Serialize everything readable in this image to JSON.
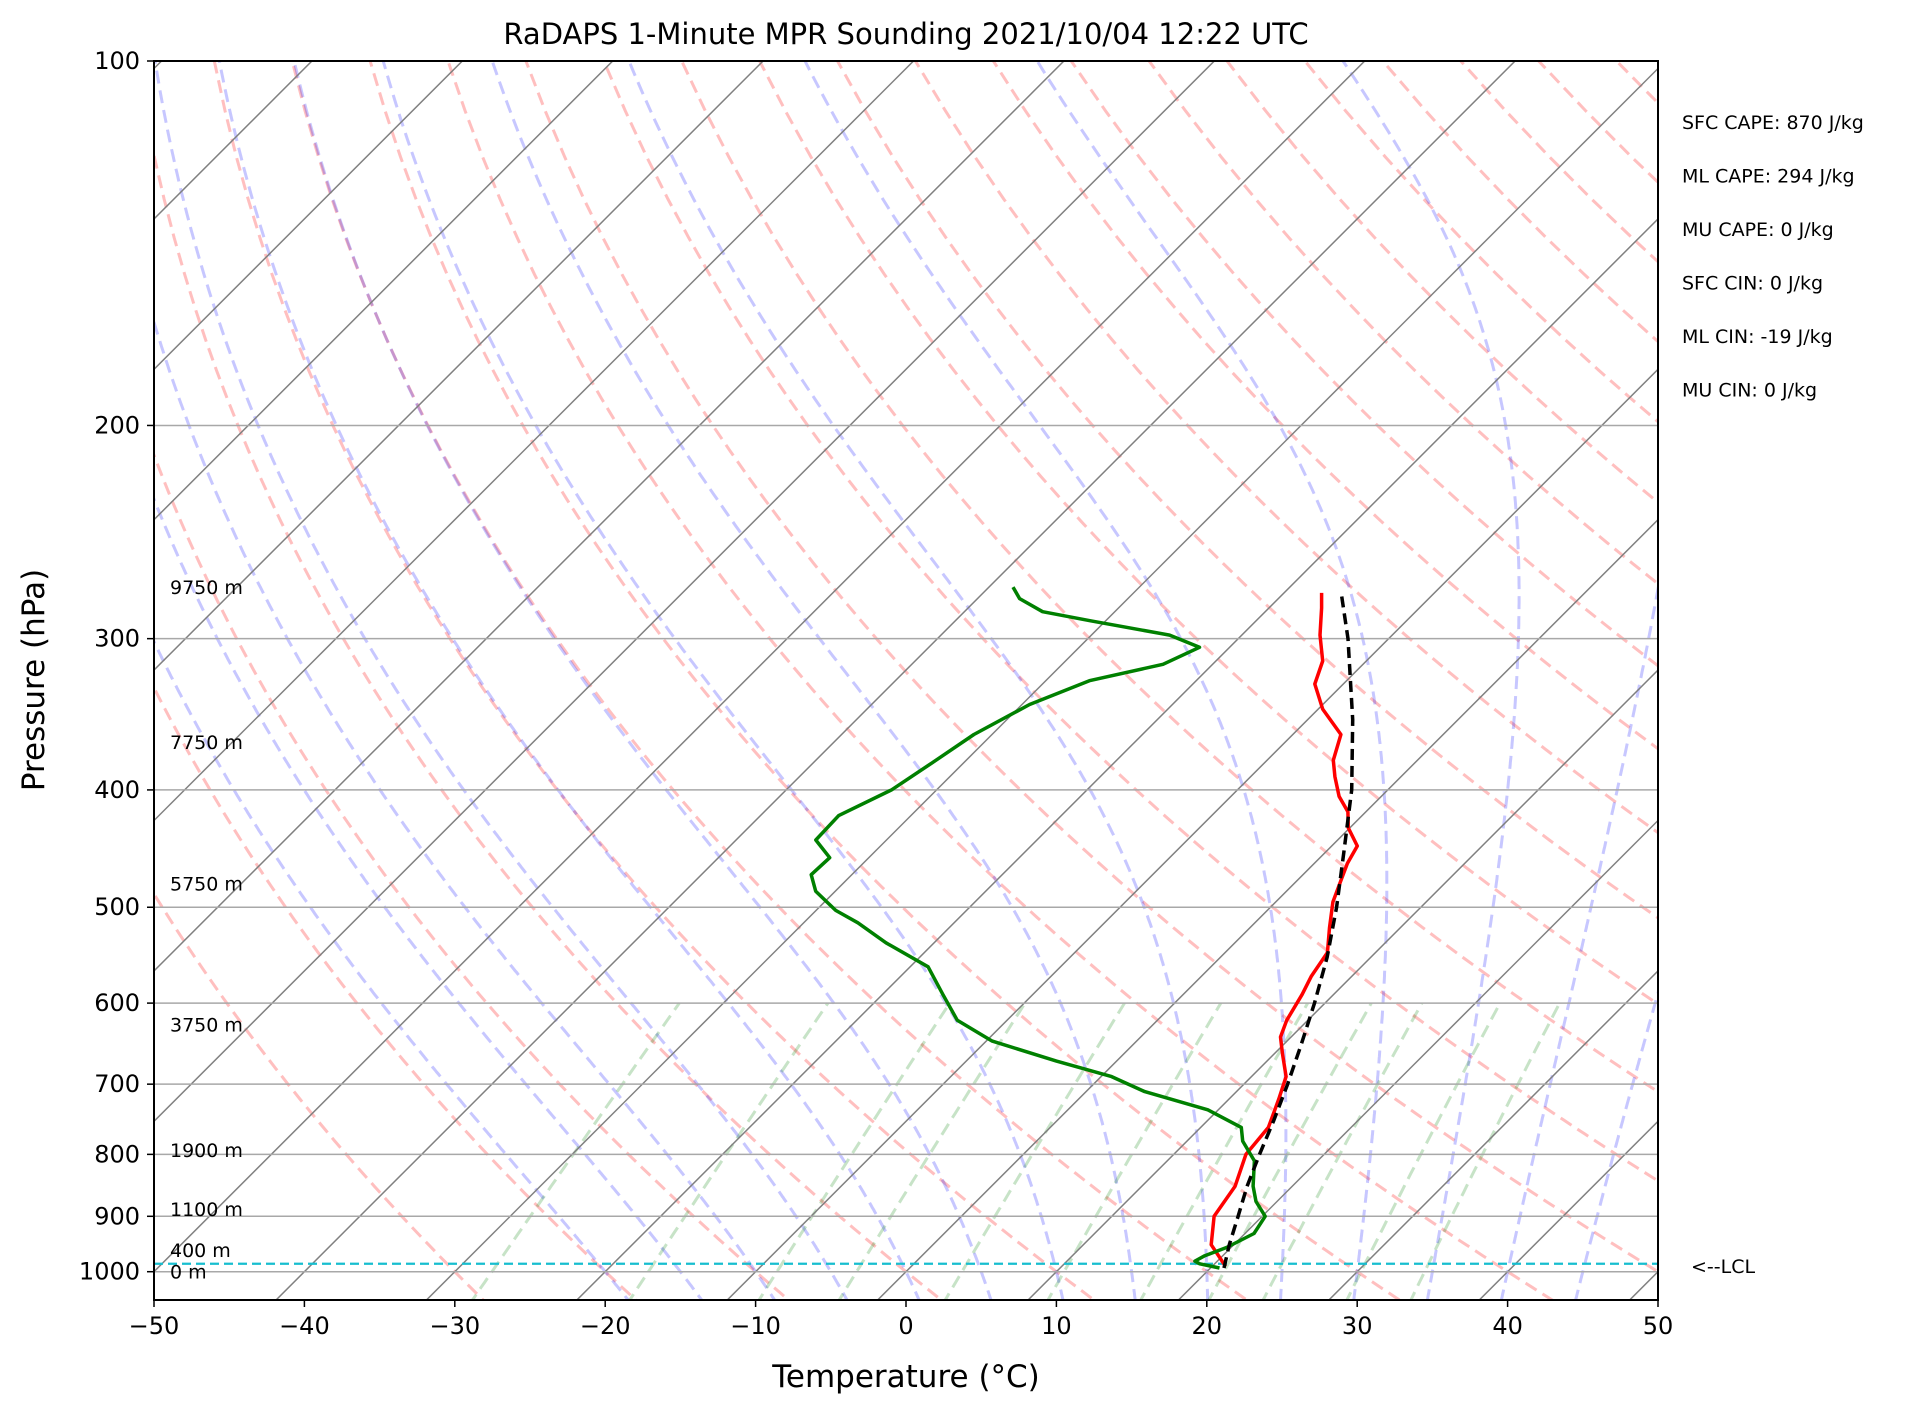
{
  "chart_data": {
    "type": "line",
    "title": "RaDAPS 1-Minute MPR Sounding 2021/10/04 12:22 UTC",
    "xlabel": "Temperature (°C)",
    "ylabel": "Pressure (hPa)",
    "xlim": [
      -50,
      50
    ],
    "ylim": [
      1050,
      100
    ],
    "y_scale": "log",
    "x_ticks": [
      -50,
      -40,
      -30,
      -20,
      -10,
      0,
      10,
      20,
      30,
      40,
      50
    ],
    "x_tick_labels": [
      "−50",
      "−40",
      "−30",
      "−20",
      "−10",
      "0",
      "10",
      "20",
      "30",
      "40",
      "50"
    ],
    "y_ticks": [
      100,
      200,
      300,
      400,
      500,
      600,
      700,
      800,
      900,
      1000
    ],
    "y_tick_labels": [
      "100",
      "200",
      "300",
      "400",
      "500",
      "600",
      "700",
      "800",
      "900",
      "1000"
    ],
    "grid": true,
    "skew": "skew-T log-p",
    "series": [
      {
        "role": "temperature",
        "color": "#ff0000",
        "points": [
          [
            990,
            20.9
          ],
          [
            950,
            18.5
          ],
          [
            900,
            16.8
          ],
          [
            850,
            16.2
          ],
          [
            800,
            14.8
          ],
          [
            760,
            14.5
          ],
          [
            720,
            13.3
          ],
          [
            690,
            12.3
          ],
          [
            660,
            10.5
          ],
          [
            640,
            9.3
          ],
          [
            620,
            8.6
          ],
          [
            590,
            7.9
          ],
          [
            570,
            7.3
          ],
          [
            545,
            6.8
          ],
          [
            520,
            5.3
          ],
          [
            495,
            3.8
          ],
          [
            475,
            2.9
          ],
          [
            460,
            2.2
          ],
          [
            445,
            1.7
          ],
          [
            430,
            -0.1
          ],
          [
            417,
            -1.2
          ],
          [
            405,
            -2.8
          ],
          [
            390,
            -4.4
          ],
          [
            378,
            -5.6
          ],
          [
            360,
            -6.8
          ],
          [
            343,
            -9.7
          ],
          [
            327,
            -11.9
          ],
          [
            313,
            -12.9
          ],
          [
            298,
            -14.8
          ],
          [
            283,
            -16.5
          ],
          [
            275,
            -17.5
          ]
        ]
      },
      {
        "role": "dewpoint",
        "color": "#008000",
        "points": [
          [
            993,
            20.6
          ],
          [
            985,
            19.0
          ],
          [
            980,
            18.5
          ],
          [
            970,
            18.8
          ],
          [
            955,
            19.7
          ],
          [
            930,
            20.6
          ],
          [
            900,
            20.2
          ],
          [
            875,
            18.6
          ],
          [
            850,
            17.4
          ],
          [
            810,
            15.8
          ],
          [
            780,
            13.7
          ],
          [
            760,
            12.7
          ],
          [
            735,
            9.3
          ],
          [
            710,
            3.9
          ],
          [
            690,
            0.7
          ],
          [
            670,
            -4.0
          ],
          [
            645,
            -9.6
          ],
          [
            620,
            -13.3
          ],
          [
            590,
            -16.0
          ],
          [
            560,
            -18.8
          ],
          [
            535,
            -23.2
          ],
          [
            515,
            -26.4
          ],
          [
            503,
            -28.7
          ],
          [
            485,
            -31.3
          ],
          [
            470,
            -32.7
          ],
          [
            455,
            -32.6
          ],
          [
            440,
            -34.7
          ],
          [
            420,
            -34.8
          ],
          [
            400,
            -33.0
          ],
          [
            380,
            -32.1
          ],
          [
            360,
            -31.2
          ],
          [
            340,
            -29.5
          ],
          [
            325,
            -27.1
          ],
          [
            315,
            -23.3
          ],
          [
            305,
            -22.0
          ],
          [
            298,
            -24.8
          ],
          [
            290,
            -31.0
          ],
          [
            285,
            -34.8
          ],
          [
            278,
            -37.2
          ],
          [
            272,
            -38.4
          ]
        ]
      },
      {
        "role": "parcel",
        "color": "#000000",
        "dashed": true,
        "points": [
          [
            993,
            20.9
          ],
          [
            950,
            19.7
          ],
          [
            900,
            18.4
          ],
          [
            850,
            17.0
          ],
          [
            800,
            15.7
          ],
          [
            750,
            14.4
          ],
          [
            700,
            12.9
          ],
          [
            650,
            11.2
          ],
          [
            600,
            9.3
          ],
          [
            550,
            7.1
          ],
          [
            500,
            4.4
          ],
          [
            450,
            1.2
          ],
          [
            400,
            -2.4
          ],
          [
            350,
            -7.0
          ],
          [
            300,
            -12.7
          ],
          [
            275,
            -16.2
          ]
        ]
      }
    ],
    "background_lines": {
      "dry_adiabats": {
        "color": "#ff0000",
        "dashed": true
      },
      "moist_adiabats": {
        "color": "#0000ff",
        "dashed": true
      },
      "mixing_ratio_lines": {
        "color": "#008000",
        "dashed": true
      },
      "isotherms": {
        "color": "#808080"
      }
    },
    "lcl": {
      "pressure": 985,
      "label": "<--LCL",
      "color": "#17becf"
    },
    "height_labels": [
      {
        "p": 1000,
        "text": "0 m"
      },
      {
        "p": 960,
        "text": "400 m"
      },
      {
        "p": 888,
        "text": "1100 m"
      },
      {
        "p": 793,
        "text": "1900 m"
      },
      {
        "p": 625,
        "text": "3750 m"
      },
      {
        "p": 478,
        "text": "5750 m"
      },
      {
        "p": 365,
        "text": "7750 m"
      },
      {
        "p": 272,
        "text": "9750 m"
      }
    ],
    "stats": [
      "SFC CAPE: 870 J/kg",
      "ML CAPE: 294 J/kg",
      "MU CAPE: 0 J/kg",
      "SFC CIN: 0 J/kg",
      "ML CIN: -19 J/kg",
      "MU CIN: 0 J/kg"
    ]
  }
}
